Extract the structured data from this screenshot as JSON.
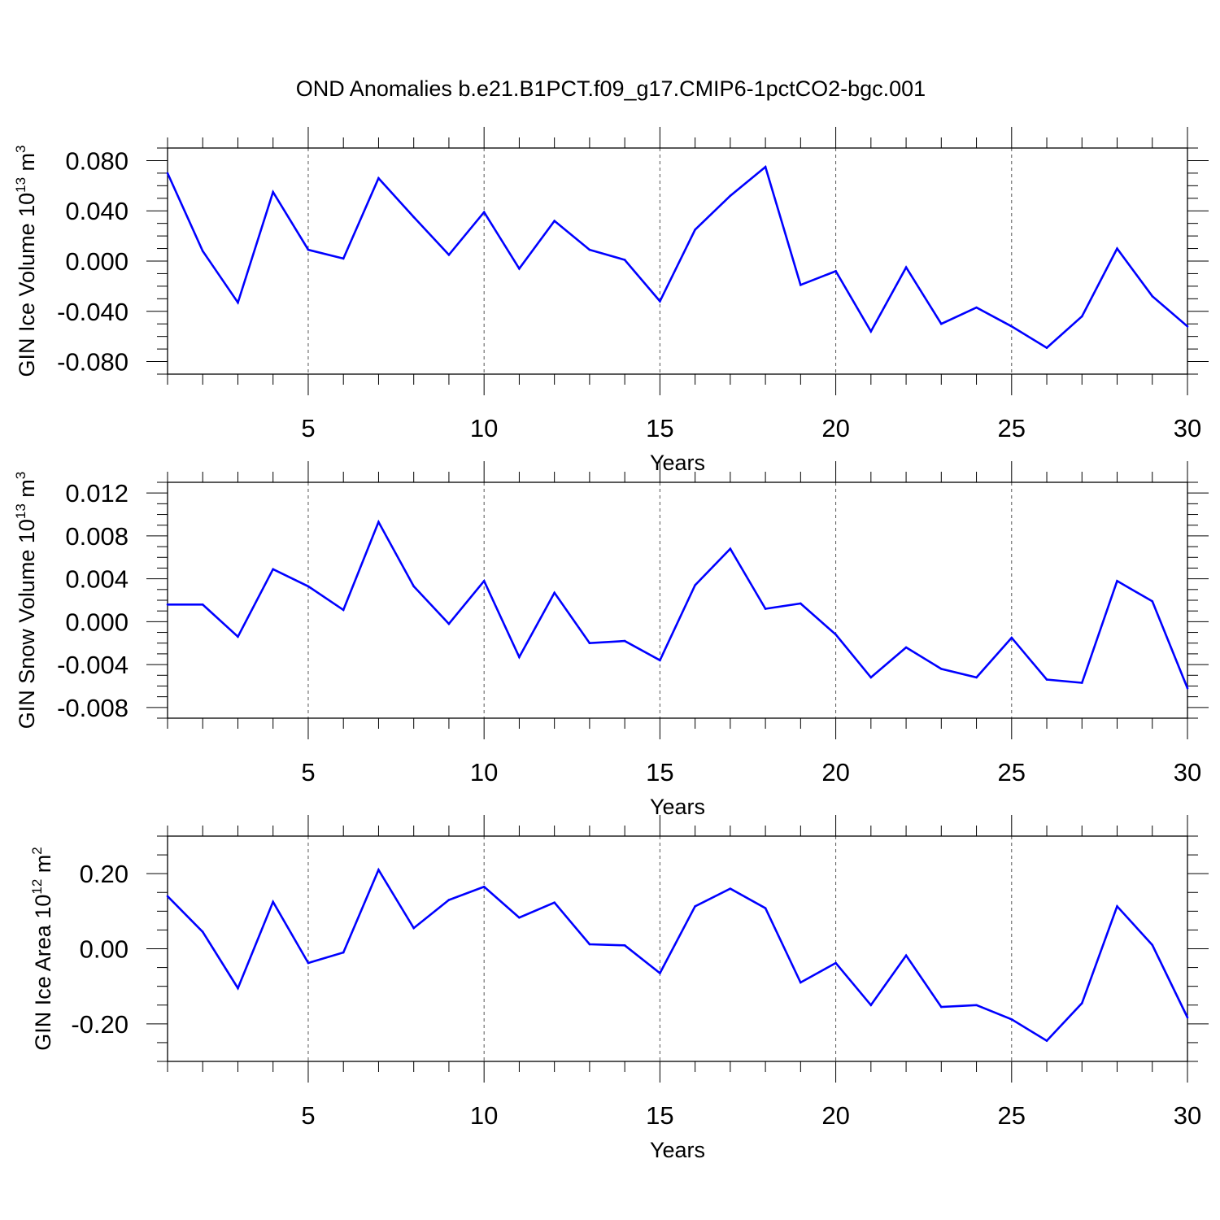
{
  "title": "OND Anomalies b.e21.B1PCT.f09_g17.CMIP6-1pctCO2-bgc.001",
  "line_color": "#0000ff",
  "chart_data": [
    {
      "type": "line",
      "xlabel": "Years",
      "ylabel_main": "GIN Ice Volume 10",
      "ylabel_exp": "13",
      "ylabel_unit": " m",
      "ylabel_unit_exp": "3",
      "xlim": [
        1,
        30
      ],
      "ylim": [
        -0.09,
        0.09
      ],
      "xticks": [
        5,
        10,
        15,
        20,
        25,
        30
      ],
      "xtick_labels": [
        "5",
        "10",
        "15",
        "20",
        "25",
        "30"
      ],
      "yticks": [
        0.08,
        0.04,
        0.0,
        -0.04,
        -0.08
      ],
      "ytick_labels": [
        "0.080",
        "0.040",
        "0.000",
        "-0.040",
        "-0.080"
      ],
      "grid": "vertical dashed at x ticks",
      "x": [
        1,
        2,
        3,
        4,
        5,
        6,
        7,
        8,
        9,
        10,
        11,
        12,
        13,
        14,
        15,
        16,
        17,
        18,
        19,
        20,
        21,
        22,
        23,
        24,
        25,
        26,
        27,
        28,
        29,
        30
      ],
      "y": [
        0.07,
        0.008,
        -0.033,
        0.055,
        0.009,
        0.002,
        0.066,
        0.035,
        0.005,
        0.039,
        -0.006,
        0.032,
        0.009,
        0.001,
        -0.032,
        0.025,
        0.052,
        0.075,
        -0.019,
        -0.008,
        -0.056,
        -0.005,
        -0.05,
        -0.037,
        -0.052,
        -0.069,
        -0.044,
        0.01,
        -0.028,
        -0.052
      ]
    },
    {
      "type": "line",
      "xlabel": "Years",
      "ylabel_main": "GIN Snow Volume 10",
      "ylabel_exp": "13",
      "ylabel_unit": " m",
      "ylabel_unit_exp": "3",
      "xlim": [
        1,
        30
      ],
      "ylim": [
        -0.009,
        0.013
      ],
      "xticks": [
        5,
        10,
        15,
        20,
        25,
        30
      ],
      "xtick_labels": [
        "5",
        "10",
        "15",
        "20",
        "25",
        "30"
      ],
      "yticks": [
        0.012,
        0.008,
        0.004,
        0.0,
        -0.004,
        -0.008
      ],
      "ytick_labels": [
        "0.012",
        "0.008",
        "0.004",
        "0.000",
        "-0.004",
        "-0.008"
      ],
      "grid": "vertical dashed at x ticks",
      "x": [
        1,
        2,
        3,
        4,
        5,
        6,
        7,
        8,
        9,
        10,
        11,
        12,
        13,
        14,
        15,
        16,
        17,
        18,
        19,
        20,
        21,
        22,
        23,
        24,
        25,
        26,
        27,
        28,
        29,
        30
      ],
      "y": [
        0.0016,
        0.0016,
        -0.0014,
        0.0049,
        0.0033,
        0.0011,
        0.0093,
        0.0033,
        -0.0002,
        0.0038,
        -0.0033,
        0.0027,
        -0.002,
        -0.0018,
        -0.0036,
        0.0034,
        0.0068,
        0.0012,
        0.0017,
        -0.0012,
        -0.0052,
        -0.0024,
        -0.0044,
        -0.0052,
        -0.0015,
        -0.0054,
        -0.0057,
        0.0038,
        0.0019,
        -0.0062
      ]
    },
    {
      "type": "line",
      "xlabel": "Years",
      "ylabel_main": "GIN Ice Area 10",
      "ylabel_exp": "12",
      "ylabel_unit": " m",
      "ylabel_unit_exp": "2",
      "xlim": [
        1,
        30
      ],
      "ylim": [
        -0.3,
        0.3
      ],
      "xticks": [
        5,
        10,
        15,
        20,
        25,
        30
      ],
      "xtick_labels": [
        "5",
        "10",
        "15",
        "20",
        "25",
        "30"
      ],
      "yticks": [
        0.2,
        0.0,
        -0.2
      ],
      "ytick_labels": [
        "0.20",
        "0.00",
        "-0.20"
      ],
      "grid": "vertical dashed at x ticks",
      "x": [
        1,
        2,
        3,
        4,
        5,
        6,
        7,
        8,
        9,
        10,
        11,
        12,
        13,
        14,
        15,
        16,
        17,
        18,
        19,
        20,
        21,
        22,
        23,
        24,
        25,
        26,
        27,
        28,
        29,
        30
      ],
      "y": [
        0.14,
        0.045,
        -0.105,
        0.125,
        -0.038,
        -0.01,
        0.21,
        0.055,
        0.13,
        0.165,
        0.083,
        0.123,
        0.012,
        0.009,
        -0.065,
        0.113,
        0.16,
        0.108,
        -0.09,
        -0.038,
        -0.15,
        -0.018,
        -0.155,
        -0.15,
        -0.188,
        -0.245,
        -0.145,
        0.113,
        0.01,
        -0.183
      ]
    }
  ]
}
